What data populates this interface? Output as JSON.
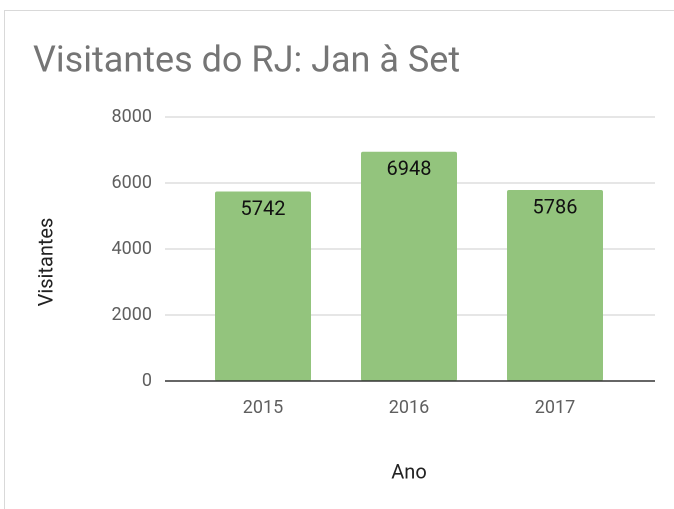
{
  "chart_data": {
    "type": "bar",
    "title": "Visitantes do RJ: Jan à Set",
    "x_label": "Ano",
    "y_label": "Visitantes",
    "categories": [
      "2015",
      "2016",
      "2017"
    ],
    "values": [
      5742,
      6948,
      5786
    ],
    "color": "#93c47d",
    "ylim": [
      0,
      8000
    ],
    "yticks": [
      0,
      2000,
      4000,
      6000,
      8000
    ],
    "grid": true,
    "data_labels": true
  }
}
